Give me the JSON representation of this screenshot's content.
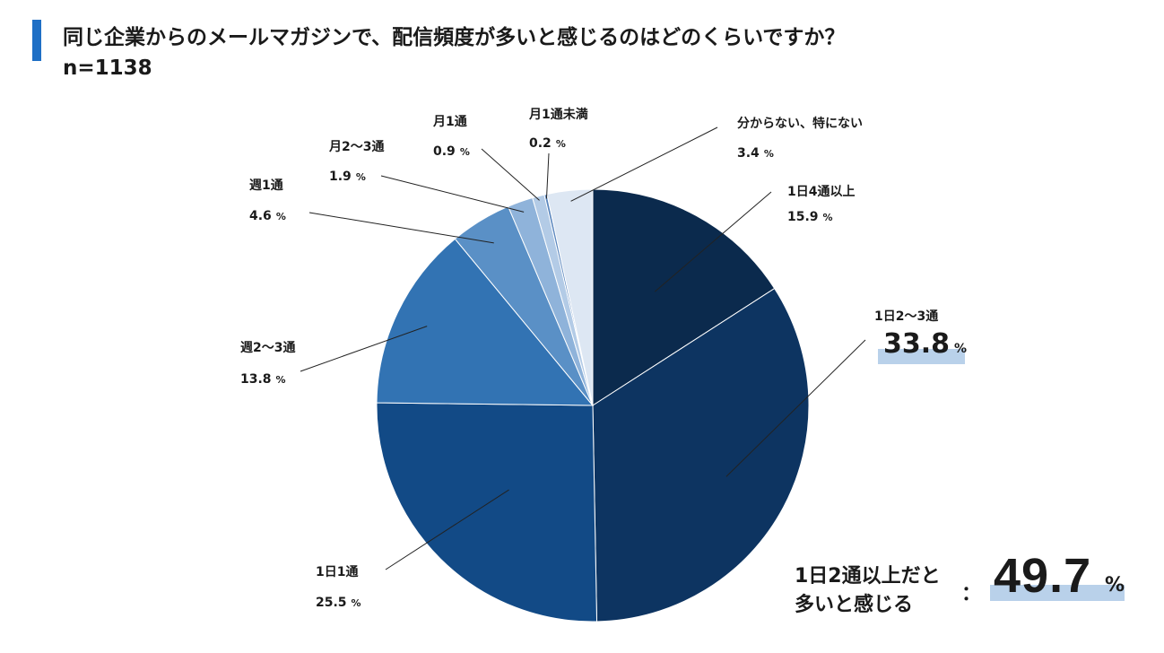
{
  "title": "同じ企業からのメールマガジンで、配信頻度が多いと感じるのはどのくらいですか？",
  "subtitle": "n=1138",
  "colors": {
    "accent": "#1f6fc5",
    "highlight": "#b9d1ea",
    "highlight_text": "#4a74b5"
  },
  "chart_data": {
    "type": "pie",
    "start": "12 o'clock, clockwise",
    "unit": "%",
    "slices": [
      {
        "label": "1日4通以上",
        "value": 15.9,
        "color": "#0b2a4d"
      },
      {
        "label": "1日2〜3通",
        "value": 33.8,
        "color": "#0d3461",
        "highlight": true
      },
      {
        "label": "1日1通",
        "value": 25.5,
        "color": "#124a86"
      },
      {
        "label": "週2〜3通",
        "value": 13.8,
        "color": "#3273b3"
      },
      {
        "label": "週1通",
        "value": 4.6,
        "color": "#5a90c6"
      },
      {
        "label": "月2〜3通",
        "value": 1.9,
        "color": "#8fb3da"
      },
      {
        "label": "月1通",
        "value": 0.9,
        "color": "#b3cbe6"
      },
      {
        "label": "月1通未満",
        "value": 0.2,
        "color": "#5b87be"
      },
      {
        "label": "分からない、特にない",
        "value": 3.4,
        "color": "#dde7f3"
      }
    ]
  },
  "summary": {
    "text_line1": "1日2通以上だと",
    "text_line2": "多いと感じる",
    "colon": "：",
    "value": "49.7",
    "unit": "%"
  }
}
